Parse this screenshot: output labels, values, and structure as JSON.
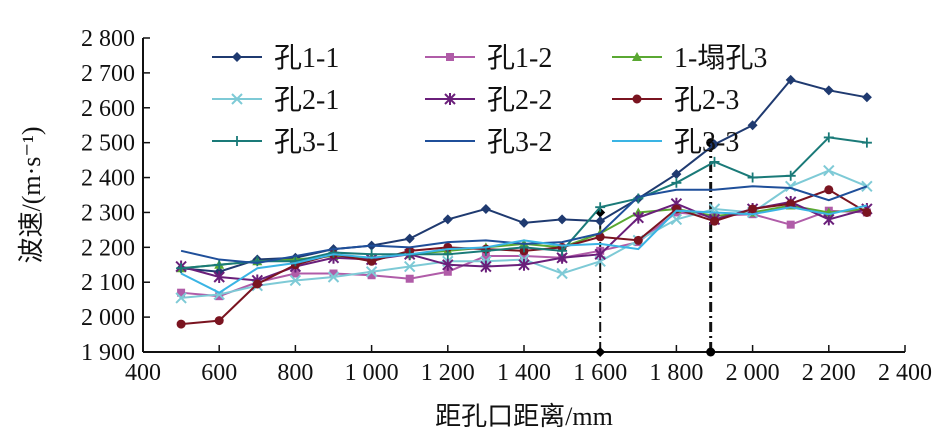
{
  "chart_data": {
    "type": "line",
    "xlabel": "距孔口距离/mm",
    "ylabel": "波速/(m·s⁻¹)",
    "xlim": [
      400,
      2400
    ],
    "ylim": [
      1900,
      2800
    ],
    "xticks": [
      400,
      600,
      800,
      1000,
      1200,
      1400,
      1600,
      1800,
      2000,
      2200,
      2400
    ],
    "xtick_labels": [
      "400",
      "600",
      "800",
      "1 000",
      "1 200",
      "1 400",
      "1 600",
      "1 800",
      "2 000",
      "2 200",
      "2 400"
    ],
    "yticks": [
      1900,
      2000,
      2100,
      2200,
      2300,
      2400,
      2500,
      2600,
      2700,
      2800
    ],
    "ytick_labels": [
      "1 900",
      "2 000",
      "2 100",
      "2 200",
      "2 300",
      "2 400",
      "2 500",
      "2 600",
      "2 700",
      "2 800"
    ],
    "legend_position": "top-left",
    "x": [
      500,
      600,
      700,
      800,
      900,
      1000,
      1100,
      1200,
      1300,
      1400,
      1500,
      1600,
      1700,
      1800,
      1900,
      2000,
      2100,
      2200,
      2300
    ],
    "series": [
      {
        "name": "孔1-1",
        "color": "#1f3a70",
        "marker": "diamond",
        "values": [
          2140,
          2130,
          2165,
          2170,
          2195,
          2205,
          2225,
          2280,
          2310,
          2270,
          2280,
          2275,
          2340,
          2410,
          2495,
          2550,
          2680,
          2650,
          2630
        ]
      },
      {
        "name": "孔1-2",
        "color": "#b05ca8",
        "marker": "square",
        "values": [
          2070,
          2060,
          2100,
          2125,
          2125,
          2120,
          2110,
          2130,
          2175,
          2175,
          2170,
          2190,
          2215,
          2300,
          2290,
          2295,
          2265,
          2305,
          2300
        ]
      },
      {
        "name": "1-塌孔3",
        "color": "#5aa832",
        "marker": "triangle",
        "values": [
          2140,
          2150,
          2160,
          2165,
          2175,
          2170,
          2180,
          2190,
          2200,
          2210,
          2200,
          2240,
          2300,
          2310,
          2290,
          2300,
          2320,
          2300,
          2310
        ]
      },
      {
        "name": "孔2-1",
        "color": "#7ecad6",
        "marker": "x",
        "values": [
          2055,
          2065,
          2090,
          2105,
          2115,
          2130,
          2145,
          2160,
          2160,
          2165,
          2125,
          2160,
          2220,
          2280,
          2310,
          2300,
          2375,
          2420,
          2375
        ]
      },
      {
        "name": "孔2-2",
        "color": "#6a1f7a",
        "marker": "star",
        "values": [
          2145,
          2115,
          2105,
          2145,
          2170,
          2165,
          2180,
          2150,
          2145,
          2150,
          2170,
          2180,
          2285,
          2325,
          2280,
          2310,
          2330,
          2280,
          2310
        ]
      },
      {
        "name": "孔2-3",
        "color": "#7a1420",
        "marker": "circle",
        "values": [
          1980,
          1990,
          2095,
          2150,
          2180,
          2160,
          2190,
          2200,
          2195,
          2190,
          2200,
          2230,
          2220,
          2310,
          2275,
          2310,
          2325,
          2365,
          2300
        ]
      },
      {
        "name": "孔3-1",
        "color": "#1a7a78",
        "marker": "plus",
        "values": [
          2140,
          2150,
          2160,
          2160,
          2185,
          2180,
          2180,
          2180,
          2190,
          2200,
          2190,
          2315,
          2340,
          2385,
          2445,
          2400,
          2405,
          2515,
          2500
        ]
      },
      {
        "name": "孔3-2",
        "color": "#1f4f9a",
        "marker": "none",
        "values": [
          2190,
          2165,
          2155,
          2175,
          2195,
          2205,
          2200,
          2215,
          2220,
          2210,
          2215,
          2240,
          2345,
          2365,
          2365,
          2375,
          2370,
          2335,
          2375
        ]
      },
      {
        "name": "孔3-3",
        "color": "#3ab4e4",
        "marker": "none",
        "values": [
          2125,
          2070,
          2140,
          2155,
          2180,
          2170,
          2180,
          2195,
          2200,
          2220,
          2205,
          2210,
          2195,
          2305,
          2300,
          2295,
          2315,
          2295,
          2320
        ]
      }
    ],
    "reference_lines": [
      {
        "x": 1600,
        "y": 2300,
        "marker": "diamond"
      },
      {
        "x": 1890,
        "y": 2500,
        "marker": "circle"
      }
    ]
  }
}
